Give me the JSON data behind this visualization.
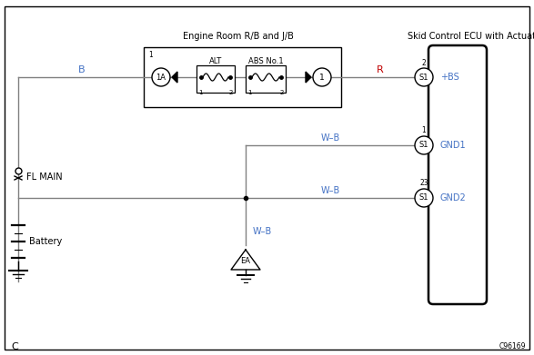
{
  "title_engine_room": "Engine Room R/B and J/B",
  "title_skid": "Skid Control ECU with Actuator",
  "label_B": "B",
  "label_R": "R",
  "label_ALT": "ALT",
  "label_ABS": "ABS No.1",
  "label_1A": "1A",
  "label_1": "1",
  "label_WB1": "W–B",
  "label_WB2": "W–B",
  "label_WB3": "W–B",
  "label_FL": "FL MAIN",
  "label_Battery": "Battery",
  "label_EA": "EA",
  "label_BS": "+BS",
  "label_GND1": "GND1",
  "label_GND2": "GND2",
  "label_S1": "S1",
  "label_pin2": "2",
  "label_pin1": "1",
  "label_pin23": "23",
  "label_corner": "C",
  "label_code": "C96169",
  "color_wire": "#808080",
  "color_text_blue": "#4472c4",
  "color_text_red": "#c00000",
  "color_black": "#000000",
  "color_white": "#ffffff",
  "color_bg": "#ffffff"
}
